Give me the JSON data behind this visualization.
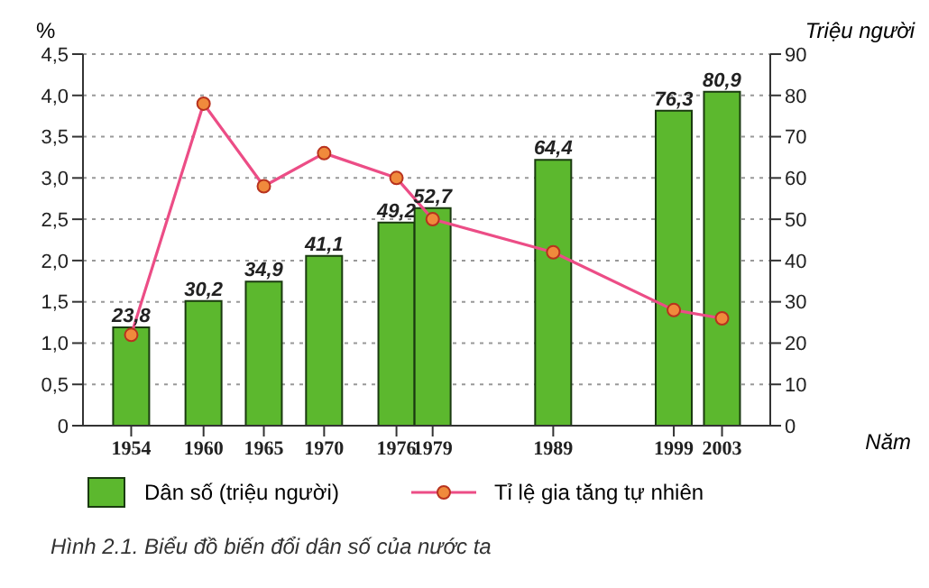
{
  "chart_data": {
    "type": "bar",
    "x": [
      1954,
      1960,
      1965,
      1970,
      1976,
      1979,
      1989,
      1999,
      2003
    ],
    "xlim": [
      1950,
      2007
    ],
    "xticks": [
      1954,
      1960,
      1965,
      1970,
      1976,
      1979,
      1989,
      1999,
      2003
    ],
    "xlabel": "Năm",
    "ylabel": "%",
    "y2label": "Triệu người",
    "series": [
      {
        "name": "Dân số (triệu người)",
        "axis": "y2",
        "color": "#5cb82e",
        "values": [
          23.8,
          30.2,
          34.9,
          41.1,
          49.2,
          52.7,
          64.4,
          76.3,
          80.9
        ],
        "value_labels": [
          "23,8",
          "30,2",
          "34,9",
          "41,1",
          "49,2",
          "52,7",
          "64,4",
          "76,3",
          "80,9"
        ]
      },
      {
        "name": "Tỉ lệ gia tăng tự nhiên",
        "type": "line",
        "color": "#ec4d86",
        "values": [
          1.1,
          3.9,
          2.9,
          3.3,
          3.0,
          2.5,
          2.1,
          1.4,
          1.3
        ]
      }
    ],
    "ylim": [
      0,
      4.5
    ],
    "yticks": [
      0,
      {
        "value": 0.5,
        "label": "0,5"
      },
      {
        "value": 1,
        "label": "1,0"
      },
      {
        "value": 1.5,
        "label": "1,5"
      },
      {
        "value": 2,
        "label": "2,0"
      },
      {
        "value": 2.5,
        "label": "2,5"
      },
      {
        "value": 3,
        "label": "3,0"
      },
      {
        "value": 3.5,
        "label": "3,5"
      },
      {
        "value": 4,
        "label": "4,0"
      },
      {
        "value": 4.5,
        "label": "4,5"
      }
    ],
    "y2lim": [
      0,
      90
    ],
    "y2ticks": [
      0,
      10,
      20,
      30,
      40,
      50,
      60,
      70,
      80,
      90
    ],
    "grid": "y",
    "legend": "bottom",
    "marker": "circle",
    "annotations": [
      "Hình 2.1. Biểu đồ biến đổi dân số của nước ta"
    ]
  }
}
